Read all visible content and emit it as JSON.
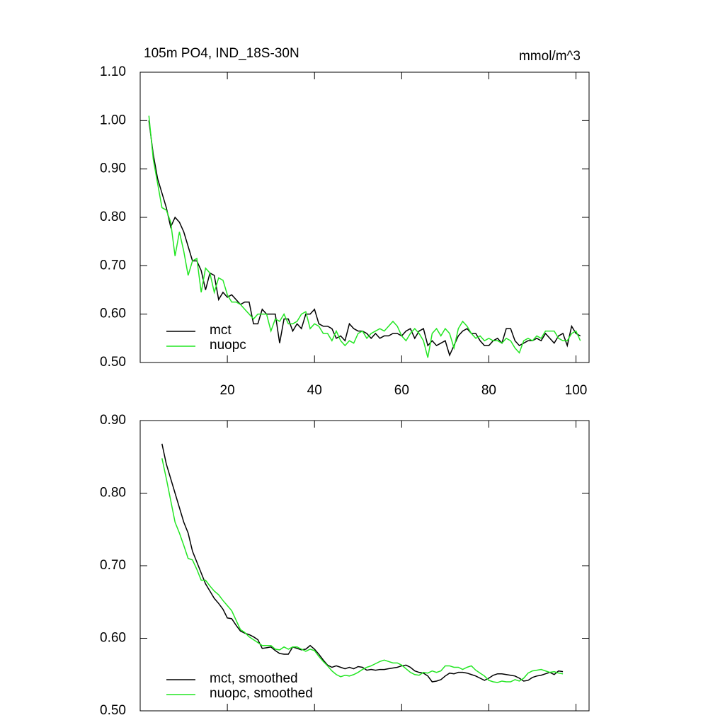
{
  "chart_data": [
    {
      "type": "line",
      "title": "105m PO4, IND_18S-30N",
      "units": "mmol/m^3",
      "xlim": [
        0,
        103
      ],
      "xticks": [
        20,
        40,
        60,
        80,
        100
      ],
      "ylim": [
        0.5,
        1.1
      ],
      "yticks": [
        {
          "value": 0.5,
          "label": "0.50"
        },
        {
          "value": 0.6,
          "label": "0.60"
        },
        {
          "value": 0.7,
          "label": "0.70"
        },
        {
          "value": 0.8,
          "label": "0.80"
        },
        {
          "value": 0.9,
          "label": "0.90"
        },
        {
          "value": 1.0,
          "label": "1.00"
        },
        {
          "value": 1.1,
          "label": "1.10"
        }
      ],
      "x": [
        2,
        3,
        4,
        5,
        6,
        7,
        8,
        9,
        10,
        11,
        12,
        13,
        14,
        15,
        16,
        17,
        18,
        19,
        20,
        21,
        22,
        23,
        24,
        25,
        26,
        27,
        28,
        29,
        30,
        31,
        32,
        33,
        34,
        35,
        36,
        37,
        38,
        39,
        40,
        41,
        42,
        43,
        44,
        45,
        46,
        47,
        48,
        49,
        50,
        51,
        52,
        53,
        54,
        55,
        56,
        57,
        58,
        59,
        60,
        61,
        62,
        63,
        64,
        65,
        66,
        67,
        68,
        69,
        70,
        71,
        72,
        73,
        74,
        75,
        76,
        77,
        78,
        79,
        80,
        81,
        82,
        83,
        84,
        85,
        86,
        87,
        88,
        89,
        90,
        91,
        92,
        93,
        94,
        95,
        96,
        97,
        98,
        99,
        100,
        101
      ],
      "series": [
        {
          "name": "mct",
          "color": "#000000",
          "values": [
            1.0,
            0.93,
            0.88,
            0.85,
            0.82,
            0.78,
            0.8,
            0.79,
            0.77,
            0.74,
            0.71,
            0.71,
            0.69,
            0.65,
            0.685,
            0.68,
            0.63,
            0.645,
            0.635,
            0.64,
            0.63,
            0.62,
            0.625,
            0.625,
            0.58,
            0.58,
            0.61,
            0.6,
            0.6,
            0.6,
            0.54,
            0.59,
            0.59,
            0.565,
            0.58,
            0.57,
            0.6,
            0.6,
            0.61,
            0.58,
            0.575,
            0.575,
            0.57,
            0.55,
            0.555,
            0.545,
            0.58,
            0.57,
            0.565,
            0.565,
            0.56,
            0.55,
            0.56,
            0.55,
            0.555,
            0.555,
            0.56,
            0.56,
            0.555,
            0.565,
            0.57,
            0.55,
            0.565,
            0.57,
            0.535,
            0.545,
            0.535,
            0.54,
            0.545,
            0.515,
            0.535,
            0.555,
            0.565,
            0.57,
            0.56,
            0.56,
            0.545,
            0.535,
            0.535,
            0.545,
            0.55,
            0.54,
            0.57,
            0.57,
            0.545,
            0.535,
            0.54,
            0.545,
            0.545,
            0.55,
            0.545,
            0.56,
            0.55,
            0.54,
            0.555,
            0.56,
            0.535,
            0.575,
            0.56,
            0.555
          ]
        },
        {
          "name": "nuopc",
          "color": "#22e622",
          "values": [
            1.01,
            0.92,
            0.87,
            0.82,
            0.815,
            0.79,
            0.72,
            0.77,
            0.73,
            0.68,
            0.71,
            0.715,
            0.645,
            0.695,
            0.685,
            0.645,
            0.675,
            0.67,
            0.64,
            0.625,
            0.625,
            0.62,
            0.61,
            0.6,
            0.59,
            0.6,
            0.6,
            0.6,
            0.565,
            0.59,
            0.585,
            0.6,
            0.58,
            0.58,
            0.585,
            0.6,
            0.605,
            0.57,
            0.58,
            0.575,
            0.56,
            0.56,
            0.545,
            0.565,
            0.545,
            0.535,
            0.545,
            0.54,
            0.56,
            0.565,
            0.55,
            0.56,
            0.565,
            0.57,
            0.565,
            0.575,
            0.585,
            0.575,
            0.555,
            0.545,
            0.56,
            0.57,
            0.56,
            0.545,
            0.51,
            0.56,
            0.57,
            0.555,
            0.57,
            0.56,
            0.53,
            0.57,
            0.585,
            0.575,
            0.56,
            0.55,
            0.555,
            0.545,
            0.55,
            0.545,
            0.545,
            0.54,
            0.55,
            0.545,
            0.53,
            0.52,
            0.545,
            0.55,
            0.545,
            0.555,
            0.55,
            0.565,
            0.565,
            0.565,
            0.55,
            0.545,
            0.545,
            0.56,
            0.565,
            0.545
          ]
        }
      ]
    },
    {
      "type": "line",
      "xlim": [
        0,
        103
      ],
      "xticks": [
        20,
        40,
        60,
        80,
        100
      ],
      "ylim": [
        0.5,
        0.9
      ],
      "yticks": [
        {
          "value": 0.5,
          "label": "0.50"
        },
        {
          "value": 0.6,
          "label": "0.60"
        },
        {
          "value": 0.7,
          "label": "0.70"
        },
        {
          "value": 0.8,
          "label": "0.80"
        },
        {
          "value": 0.9,
          "label": "0.90"
        }
      ],
      "x": [
        5,
        6,
        7,
        8,
        9,
        10,
        11,
        12,
        13,
        14,
        15,
        16,
        17,
        18,
        19,
        20,
        21,
        22,
        23,
        24,
        25,
        26,
        27,
        28,
        29,
        30,
        31,
        32,
        33,
        34,
        35,
        36,
        37,
        38,
        39,
        40,
        41,
        42,
        43,
        44,
        45,
        46,
        47,
        48,
        49,
        50,
        51,
        52,
        53,
        54,
        55,
        56,
        57,
        58,
        59,
        60,
        61,
        62,
        63,
        64,
        65,
        66,
        67,
        68,
        69,
        70,
        71,
        72,
        73,
        74,
        75,
        76,
        77,
        78,
        79,
        80,
        81,
        82,
        83,
        84,
        85,
        86,
        87,
        88,
        89,
        90,
        91,
        92,
        93,
        94,
        95,
        96,
        97
      ],
      "series": [
        {
          "name": "mct, smoothed",
          "color": "#000000",
          "values": [
            0.868,
            0.84,
            0.82,
            0.8,
            0.78,
            0.76,
            0.745,
            0.72,
            0.705,
            0.69,
            0.675,
            0.665,
            0.655,
            0.648,
            0.64,
            0.628,
            0.627,
            0.618,
            0.61,
            0.607,
            0.605,
            0.602,
            0.598,
            0.586,
            0.587,
            0.588,
            0.583,
            0.579,
            0.578,
            0.578,
            0.588,
            0.586,
            0.584,
            0.585,
            0.59,
            0.585,
            0.578,
            0.57,
            0.563,
            0.56,
            0.562,
            0.56,
            0.558,
            0.56,
            0.558,
            0.561,
            0.56,
            0.556,
            0.557,
            0.556,
            0.557,
            0.557,
            0.558,
            0.559,
            0.56,
            0.562,
            0.563,
            0.56,
            0.555,
            0.553,
            0.552,
            0.548,
            0.54,
            0.541,
            0.543,
            0.548,
            0.552,
            0.551,
            0.553,
            0.553,
            0.552,
            0.55,
            0.548,
            0.545,
            0.542,
            0.545,
            0.549,
            0.551,
            0.551,
            0.55,
            0.549,
            0.548,
            0.545,
            0.541,
            0.542,
            0.546,
            0.548,
            0.549,
            0.551,
            0.553,
            0.55,
            0.555,
            0.554
          ]
        },
        {
          "name": "nuopc, smoothed",
          "color": "#22e622",
          "values": [
            0.848,
            0.82,
            0.79,
            0.76,
            0.745,
            0.728,
            0.71,
            0.708,
            0.695,
            0.68,
            0.68,
            0.672,
            0.665,
            0.66,
            0.652,
            0.645,
            0.638,
            0.625,
            0.612,
            0.608,
            0.602,
            0.598,
            0.594,
            0.59,
            0.59,
            0.59,
            0.585,
            0.584,
            0.588,
            0.585,
            0.588,
            0.588,
            0.585,
            0.582,
            0.585,
            0.583,
            0.575,
            0.568,
            0.562,
            0.555,
            0.55,
            0.547,
            0.549,
            0.548,
            0.55,
            0.553,
            0.557,
            0.56,
            0.562,
            0.565,
            0.568,
            0.57,
            0.568,
            0.566,
            0.566,
            0.563,
            0.558,
            0.553,
            0.55,
            0.549,
            0.553,
            0.552,
            0.555,
            0.553,
            0.555,
            0.562,
            0.562,
            0.56,
            0.56,
            0.557,
            0.56,
            0.562,
            0.556,
            0.552,
            0.548,
            0.542,
            0.54,
            0.539,
            0.541,
            0.54,
            0.54,
            0.543,
            0.541,
            0.545,
            0.552,
            0.555,
            0.556,
            0.557,
            0.555,
            0.553,
            0.554,
            0.552,
            0.551
          ]
        }
      ]
    }
  ]
}
